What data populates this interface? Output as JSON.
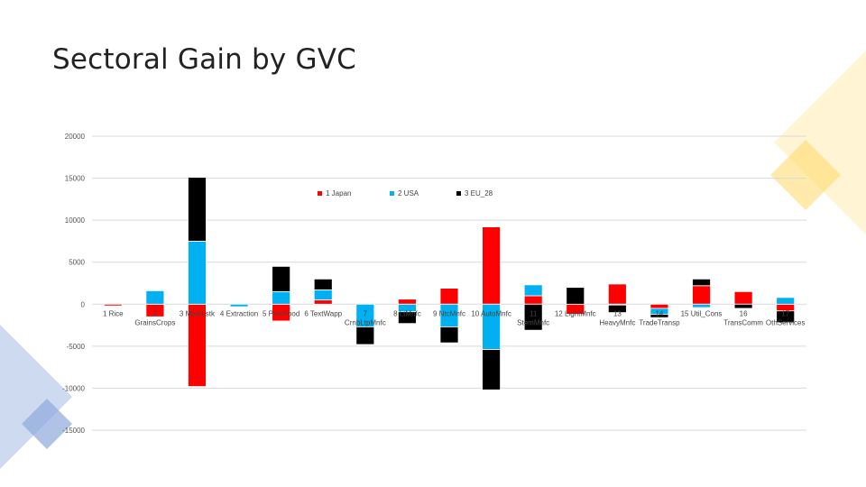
{
  "page": {
    "title": "Sectoral Gain by GVC"
  },
  "theme": {
    "accent_yellow": "#FFD966",
    "accent_blue": "#8EA9DB"
  },
  "chart_data": {
    "type": "bar",
    "stacked": true,
    "title": "",
    "xlabel": "",
    "ylabel": "",
    "ylim": [
      -15000,
      20000
    ],
    "yticks": [
      20000,
      15000,
      10000,
      5000,
      0,
      -5000,
      -10000,
      -15000
    ],
    "grid": true,
    "legend_position": "top-center",
    "category_labels": [
      [
        "1 Rice"
      ],
      [
        "2",
        "GrainsCrops"
      ],
      [
        "3 MeatLstk"
      ],
      [
        "4 Extraction"
      ],
      [
        "5 ProcFood"
      ],
      [
        "6 TextWapp"
      ],
      [
        "7",
        "CrnbLtpMnfc"
      ],
      [
        "8 LtMnfc"
      ],
      [
        "9 NtcMnfc"
      ],
      [
        "10 AutoMnfc"
      ],
      [
        "11",
        "StemMnfc"
      ],
      [
        "12 LightMnfc"
      ],
      [
        "13",
        "HeavyMnfc"
      ],
      [
        "14",
        "TradeTransp"
      ],
      [
        "15 Util_Cons"
      ],
      [
        "16",
        "TransComm"
      ],
      [
        "17",
        "OthServices"
      ]
    ],
    "series": [
      {
        "name": "1 Japan",
        "color": "#FF0000",
        "values": [
          -200,
          -1500,
          -9800,
          0,
          -2000,
          500,
          0,
          600,
          1900,
          9200,
          1000,
          -1200,
          2400,
          -500,
          2200,
          1500,
          -800
        ]
      },
      {
        "name": "2 USA",
        "color": "#00B0F0",
        "values": [
          0,
          1600,
          7500,
          -300,
          1500,
          1200,
          -2700,
          -900,
          -2700,
          -5400,
          1300,
          0,
          -100,
          -700,
          -400,
          0,
          800
        ]
      },
      {
        "name": "3 EU_28",
        "color": "#000000",
        "values": [
          0,
          0,
          7600,
          0,
          3000,
          1300,
          -2100,
          -1400,
          -1900,
          -4800,
          -3100,
          2000,
          -900,
          -400,
          800,
          -500,
          -1400
        ]
      }
    ]
  }
}
